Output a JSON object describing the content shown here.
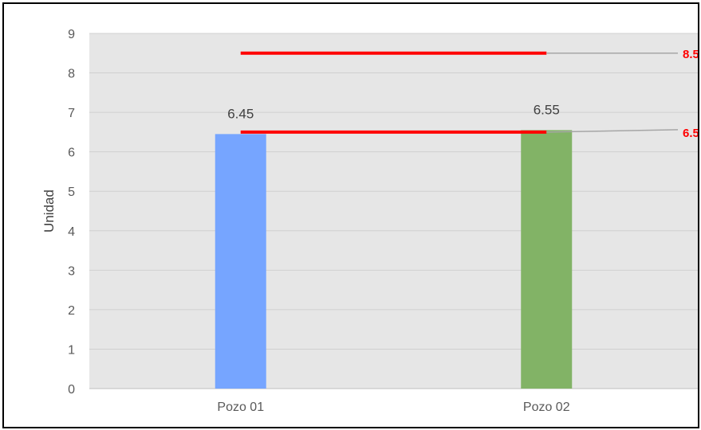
{
  "chart_data": {
    "type": "bar",
    "categories": [
      "Pozo 01",
      "Pozo 02"
    ],
    "values": [
      6.45,
      6.55
    ],
    "data_labels": [
      "6.45",
      "6.55"
    ],
    "bar_colors": [
      "#76a5ff",
      "#82b366"
    ],
    "ylabel": "Unidad",
    "xlabel": "",
    "ylim": [
      0,
      9
    ],
    "yticks": [
      "0",
      "1",
      "2",
      "3",
      "4",
      "5",
      "6",
      "7",
      "8",
      "9"
    ],
    "grid": true,
    "plot_background": "#e6e6e6",
    "reference_lines": [
      {
        "value": 8.5,
        "label": "8.5",
        "color": "#ff0000"
      },
      {
        "value": 6.5,
        "label": "6.5",
        "color": "#ff0000"
      }
    ]
  }
}
